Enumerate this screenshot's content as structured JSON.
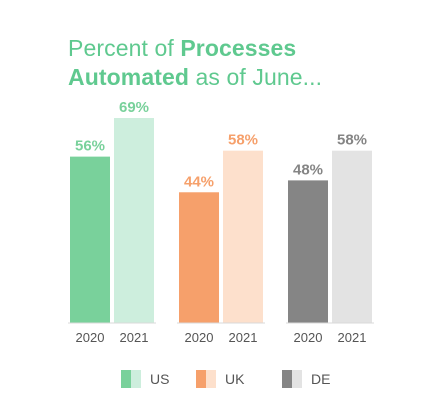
{
  "title": {
    "line1_plain": "Percent of ",
    "line1_bold": "Processes",
    "line2_bold": "Automated",
    "line2_plain": " as of June..."
  },
  "chart_data": {
    "type": "bar",
    "title": "Percent of Processes Automated as of June...",
    "categories": [
      "2020",
      "2021"
    ],
    "groups": [
      {
        "name": "US",
        "values": [
          56,
          69
        ],
        "labels": [
          "56%",
          "69%"
        ],
        "colors": [
          "#79d19b",
          "#cdeedd"
        ],
        "label_colors": [
          "#79d19b",
          "#79d19b"
        ]
      },
      {
        "name": "UK",
        "values": [
          44,
          58
        ],
        "labels": [
          "44%",
          "58%"
        ],
        "colors": [
          "#f6a06b",
          "#fde0cc"
        ],
        "label_colors": [
          "#f6a06b",
          "#f6a06b"
        ]
      },
      {
        "name": "DE",
        "values": [
          48,
          58
        ],
        "labels": [
          "48%",
          "58%"
        ],
        "colors": [
          "#858585",
          "#e3e3e3"
        ],
        "label_colors": [
          "#858585",
          "#858585"
        ]
      }
    ],
    "ylim": [
      0,
      100
    ],
    "grid": false,
    "legend_position": "bottom",
    "axis_color": "#d9d9d9",
    "tick_color": "#555555"
  },
  "legend": [
    {
      "label": "US",
      "colors": [
        "#79d19b",
        "#cdeedd"
      ]
    },
    {
      "label": "UK",
      "colors": [
        "#f6a06b",
        "#fde0cc"
      ]
    },
    {
      "label": "DE",
      "colors": [
        "#858585",
        "#e3e3e3"
      ]
    }
  ]
}
